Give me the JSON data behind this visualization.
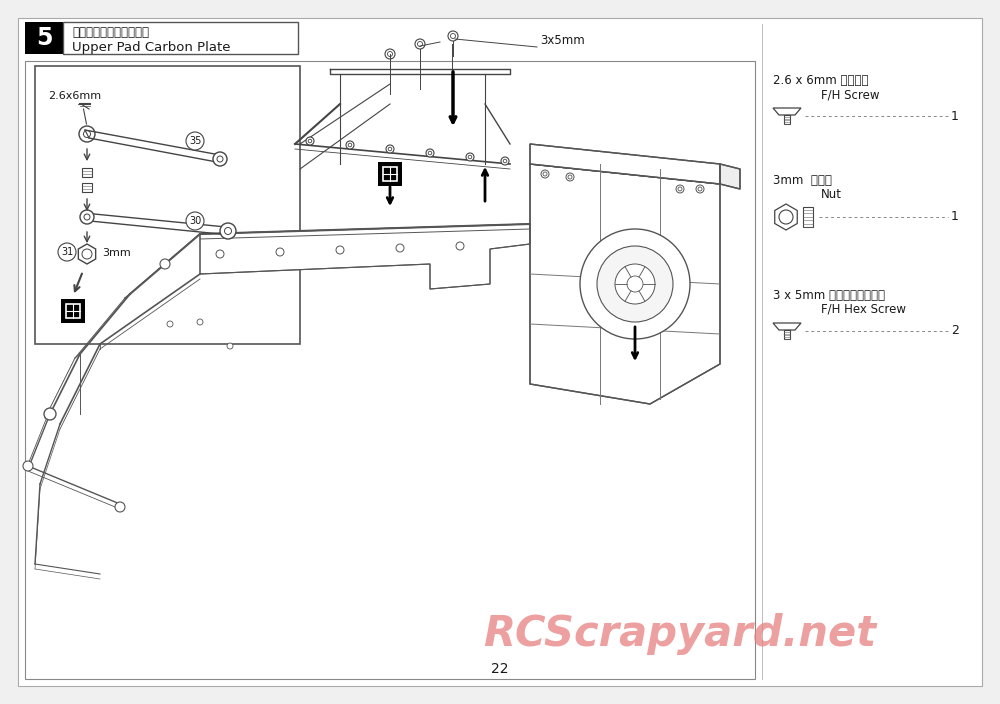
{
  "page_number": "22",
  "bg_color": "#f0f0f0",
  "page_bg": "#ffffff",
  "text_color": "#1a1a1a",
  "line_color": "#444444",
  "watermark_text": "RCScrapyard.net",
  "watermark_color": "#e88080",
  "step_number": "5",
  "step_title_jp": "アッパーパッドプレート",
  "step_title_en": "Upper Pad Carbon Plate",
  "parts_label_1_jp": "2.6 x 6mm サラビス",
  "parts_label_1_en": "F/H Screw",
  "parts_count_1": "1",
  "parts_label_2_jp": "3mm  ナット",
  "parts_label_2_en": "Nut",
  "parts_count_2": "1",
  "parts_label_3_jp": "3 x 5mm サラヘックスビス",
  "parts_label_3_en": "F/H Hex Screw",
  "parts_count_3": "2",
  "label_3x5mm": "3x5mm",
  "label_2p6x6mm": "2.6x6mm",
  "label_3mm": "3mm",
  "label_35": "35",
  "label_30": "30",
  "label_31": "31"
}
